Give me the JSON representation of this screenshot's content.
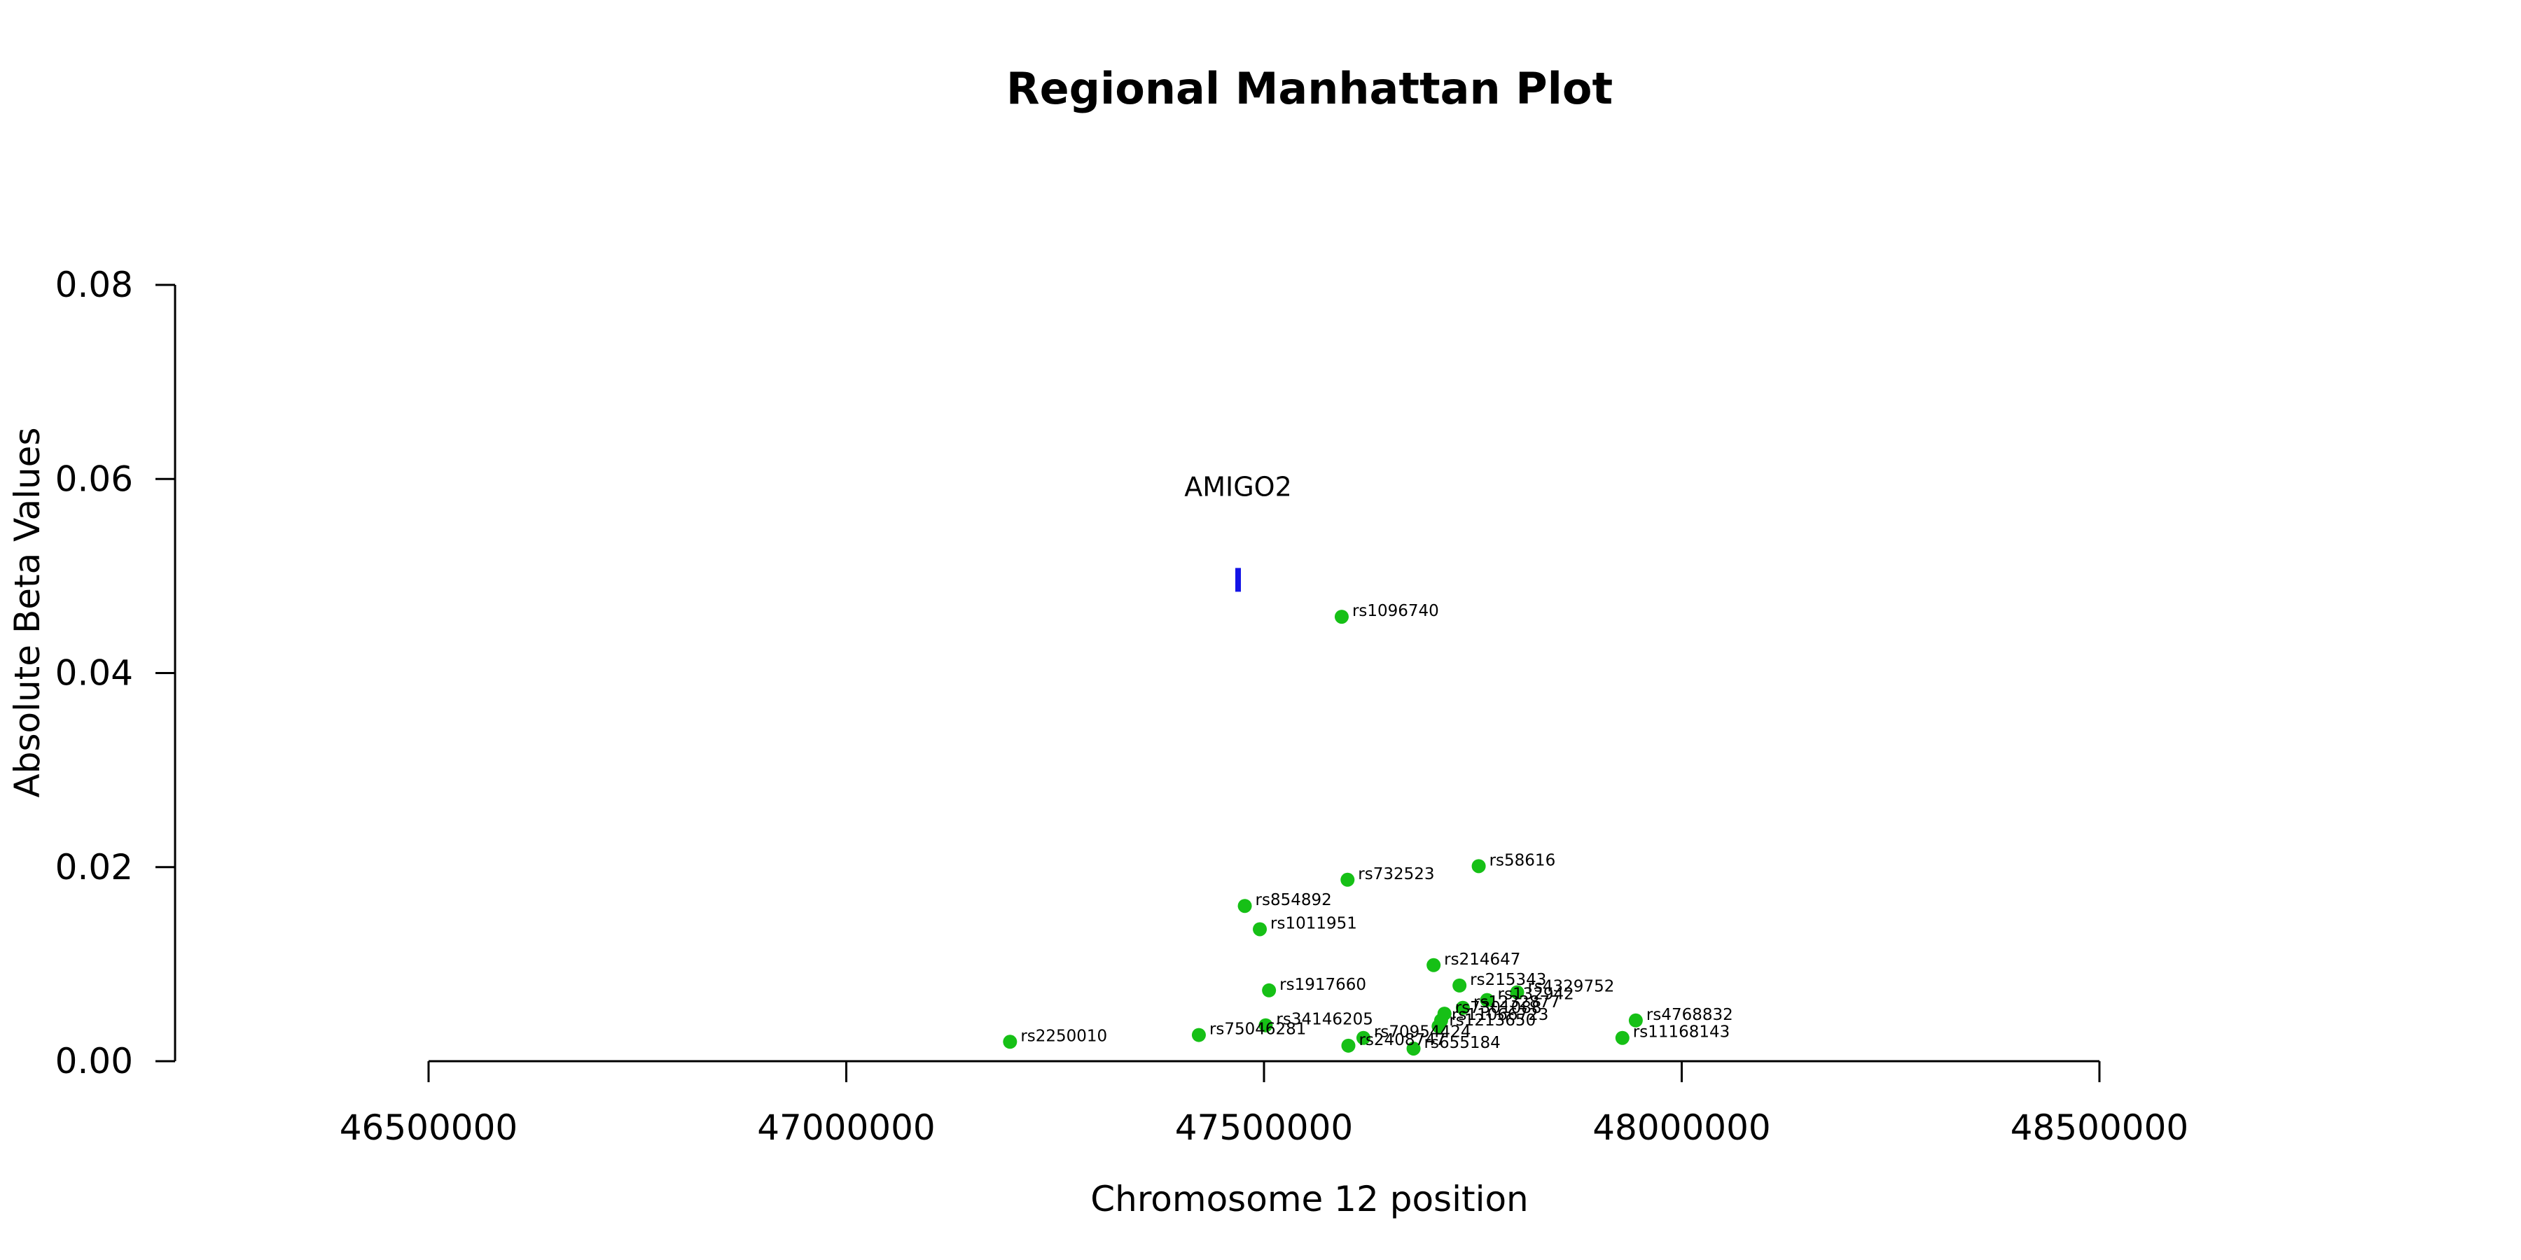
{
  "chart_data": {
    "type": "scatter",
    "title": "Regional Manhattan Plot",
    "xlabel": "Chromosome 12 position",
    "ylabel": "Absolute Beta Values",
    "xlim": [
      46500000,
      48500000
    ],
    "ylim": [
      0,
      0.08
    ],
    "x_ticks": [
      46500000,
      47000000,
      47500000,
      48000000,
      48500000
    ],
    "y_ticks": [
      0.0,
      0.02,
      0.04,
      0.06,
      0.08
    ],
    "x_tick_labels": [
      "46500000",
      "47000000",
      "47500000",
      "48000000",
      "48500000"
    ],
    "y_tick_labels": [
      "0.00",
      "0.02",
      "0.04",
      "0.06",
      "0.08"
    ],
    "point_color": "#16C016",
    "gene_color": "#1414E6",
    "genes": [
      {
        "name": "AMIGO2",
        "x": 47469000,
        "y": 0.0496
      }
    ],
    "points": [
      {
        "label": "rs1096740",
        "x": 47593000,
        "y": 0.0458
      },
      {
        "label": "rs58616",
        "x": 47757000,
        "y": 0.0201
      },
      {
        "label": "rs732523",
        "x": 47600000,
        "y": 0.0187
      },
      {
        "label": "rs854892",
        "x": 47477000,
        "y": 0.016
      },
      {
        "label": "rs1011951",
        "x": 47495000,
        "y": 0.0136
      },
      {
        "label": "rs214647",
        "x": 47703000,
        "y": 0.0099
      },
      {
        "label": "rs215343",
        "x": 47734000,
        "y": 0.0078
      },
      {
        "label": "rs1917660",
        "x": 47506000,
        "y": 0.0073
      },
      {
        "label": "rs4329752",
        "x": 47803000,
        "y": 0.0071
      },
      {
        "label": "rs132942",
        "x": 47767000,
        "y": 0.0063
      },
      {
        "label": "rs1232877",
        "x": 47738000,
        "y": 0.0055
      },
      {
        "label": "rs7301088",
        "x": 47716000,
        "y": 0.0049
      },
      {
        "label": "rs4768832",
        "x": 47945000,
        "y": 0.0042
      },
      {
        "label": "rs11066723",
        "x": 47712000,
        "y": 0.0042
      },
      {
        "label": "rs34146205",
        "x": 47502000,
        "y": 0.0037
      },
      {
        "label": "rs1213650",
        "x": 47709000,
        "y": 0.0036
      },
      {
        "label": "rs75046281",
        "x": 47422000,
        "y": 0.0027
      },
      {
        "label": "rs11168143",
        "x": 47929000,
        "y": 0.0024
      },
      {
        "label": "rs2250010",
        "x": 47196000,
        "y": 0.002
      },
      {
        "label": "rs70954424",
        "x": 47619000,
        "y": 0.0024
      },
      {
        "label": "rs2408747",
        "x": 47601000,
        "y": 0.0016
      },
      {
        "label": "rs655184",
        "x": 47679000,
        "y": 0.0013
      }
    ]
  }
}
